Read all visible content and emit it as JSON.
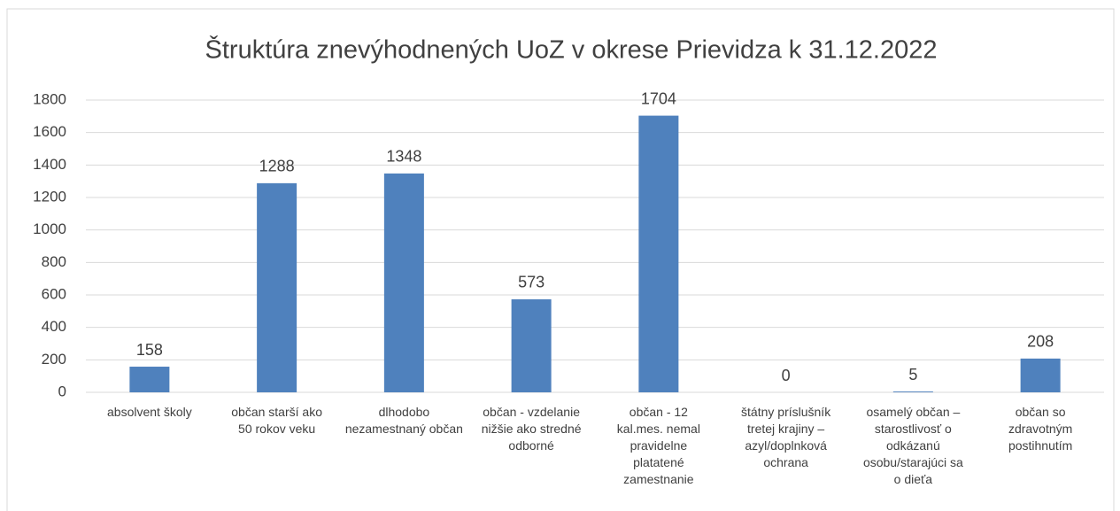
{
  "chart_data": {
    "type": "bar",
    "title": "Štruktúra znevýhodnených UoZ v okrese Prievidza k 31.12.2022",
    "categories": [
      "absolvent školy",
      "občan starší ako 50 rokov veku",
      "dlhodobo nezamestnaný občan",
      "občan - vzdelanie nižšie ako stredné odborné",
      "občan - 12 kal.mes. nemal pravidelne platatené zamestnanie",
      "štátny príslušník tretej krajiny – azyl/doplnková ochrana",
      "osamelý občan – starostlivosť o odkázanú osobu/starajúci sa o dieťa",
      "občan so zdravotným postihnutím"
    ],
    "values": [
      158,
      1288,
      1348,
      573,
      1704,
      0,
      5,
      208
    ],
    "color": "#4f81bd",
    "ylim": [
      0,
      1800
    ],
    "yticks": [
      0,
      200,
      400,
      600,
      800,
      1000,
      1200,
      1400,
      1600,
      1800
    ],
    "grid": true
  }
}
